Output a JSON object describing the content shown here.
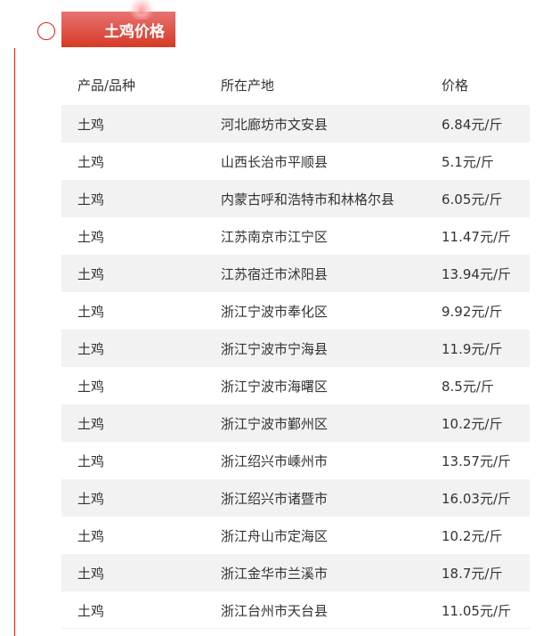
{
  "section": {
    "title": "土鸡价格",
    "accent": "#d8261c"
  },
  "table": {
    "headers": [
      "产品/品种",
      "所在产地",
      "价格"
    ],
    "rows": [
      [
        "土鸡",
        "河北廊坊市文安县",
        "6.84元/斤"
      ],
      [
        "土鸡",
        "山西长治市平顺县",
        "5.1元/斤"
      ],
      [
        "土鸡",
        "内蒙古呼和浩特市和林格尔县",
        "6.05元/斤"
      ],
      [
        "土鸡",
        "江苏南京市江宁区",
        "11.47元/斤"
      ],
      [
        "土鸡",
        "江苏宿迁市沭阳县",
        "13.94元/斤"
      ],
      [
        "土鸡",
        "浙江宁波市奉化区",
        "9.92元/斤"
      ],
      [
        "土鸡",
        "浙江宁波市宁海县",
        "11.9元/斤"
      ],
      [
        "土鸡",
        "浙江宁波市海曙区",
        "8.5元/斤"
      ],
      [
        "土鸡",
        "浙江宁波市鄞州区",
        "10.2元/斤"
      ],
      [
        "土鸡",
        "浙江绍兴市嵊州市",
        "13.57元/斤"
      ],
      [
        "土鸡",
        "浙江绍兴市诸暨市",
        "16.03元/斤"
      ],
      [
        "土鸡",
        "浙江舟山市定海区",
        "10.2元/斤"
      ],
      [
        "土鸡",
        "浙江金华市兰溪市",
        "18.7元/斤"
      ],
      [
        "土鸡",
        "浙江台州市天台县",
        "11.05元/斤"
      ]
    ]
  }
}
